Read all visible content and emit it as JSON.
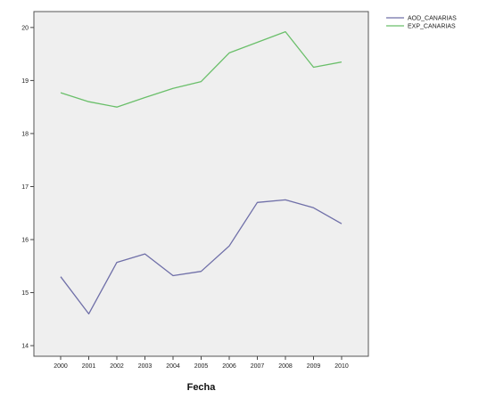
{
  "chart_data": {
    "type": "line",
    "title": "",
    "xlabel": "Fecha",
    "ylabel": "",
    "categories": [
      "2000",
      "2001",
      "2002",
      "2003",
      "2004",
      "2005",
      "2006",
      "2007",
      "2008",
      "2009",
      "2010"
    ],
    "ylim": [
      13.8,
      20.3
    ],
    "yticks": [
      "14",
      "15",
      "16",
      "17",
      "18",
      "19",
      "20"
    ],
    "grid": false,
    "legend_position": "top-right",
    "series": [
      {
        "name": "AOD_CANARIAS",
        "color": "#6f6fa8",
        "values": [
          15.3,
          14.6,
          15.57,
          15.73,
          15.32,
          15.4,
          15.88,
          16.7,
          16.75,
          16.6,
          16.3
        ]
      },
      {
        "name": "EXP_CANARIAS",
        "color": "#6abf6a",
        "values": [
          18.77,
          18.6,
          18.5,
          18.68,
          18.85,
          18.98,
          19.52,
          19.72,
          19.92,
          19.25,
          19.35
        ]
      }
    ],
    "plot_background": "#efefef"
  }
}
